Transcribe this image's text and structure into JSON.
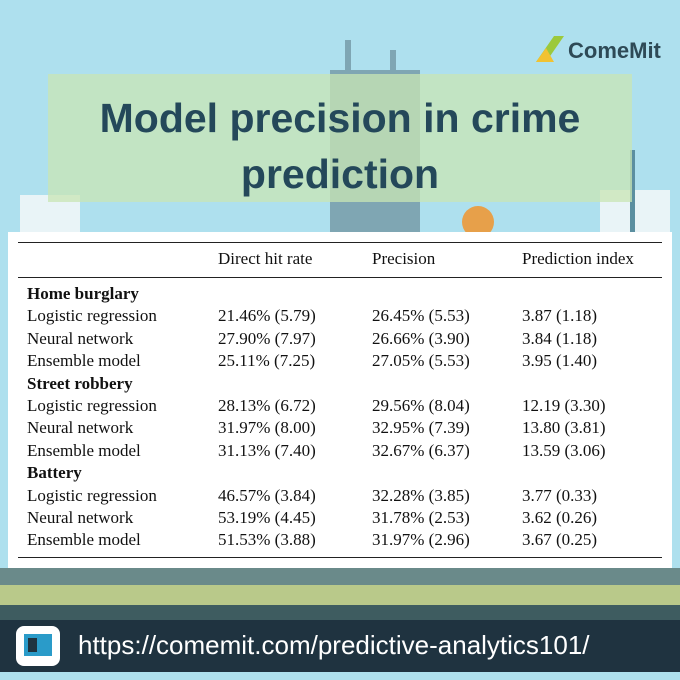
{
  "logo": "ComeMit",
  "title": "Model precision in crime prediction",
  "table": {
    "header": [
      "Direct hit rate",
      "Precision",
      "Prediction index"
    ],
    "groups": [
      {
        "name": "Home burglary",
        "rows": [
          [
            "Logistic regression",
            "21.46% (5.79)",
            "26.45% (5.53)",
            "3.87 (1.18)"
          ],
          [
            "Neural network",
            "27.90% (7.97)",
            "26.66% (3.90)",
            "3.84 (1.18)"
          ],
          [
            "Ensemble model",
            "25.11% (7.25)",
            "27.05% (5.53)",
            "3.95 (1.40)"
          ]
        ]
      },
      {
        "name": "Street robbery",
        "rows": [
          [
            "Logistic regression",
            "28.13% (6.72)",
            "29.56% (8.04)",
            "12.19 (3.30)"
          ],
          [
            "Neural network",
            "31.97% (8.00)",
            "32.95% (7.39)",
            "13.80 (3.81)"
          ],
          [
            "Ensemble model",
            "31.13% (7.40)",
            "32.67% (6.37)",
            "13.59 (3.06)"
          ]
        ]
      },
      {
        "name": "Battery",
        "rows": [
          [
            "Logistic regression",
            "46.57% (3.84)",
            "32.28% (3.85)",
            "3.77 (0.33)"
          ],
          [
            "Neural network",
            "53.19% (4.45)",
            "31.78% (2.53)",
            "3.62 (0.26)"
          ],
          [
            "Ensemble model",
            "51.53% (3.88)",
            "31.97% (2.96)",
            "3.67 (0.25)"
          ]
        ]
      }
    ]
  },
  "footer": {
    "url": "https://comemit.com/predictive-analytics101/"
  }
}
